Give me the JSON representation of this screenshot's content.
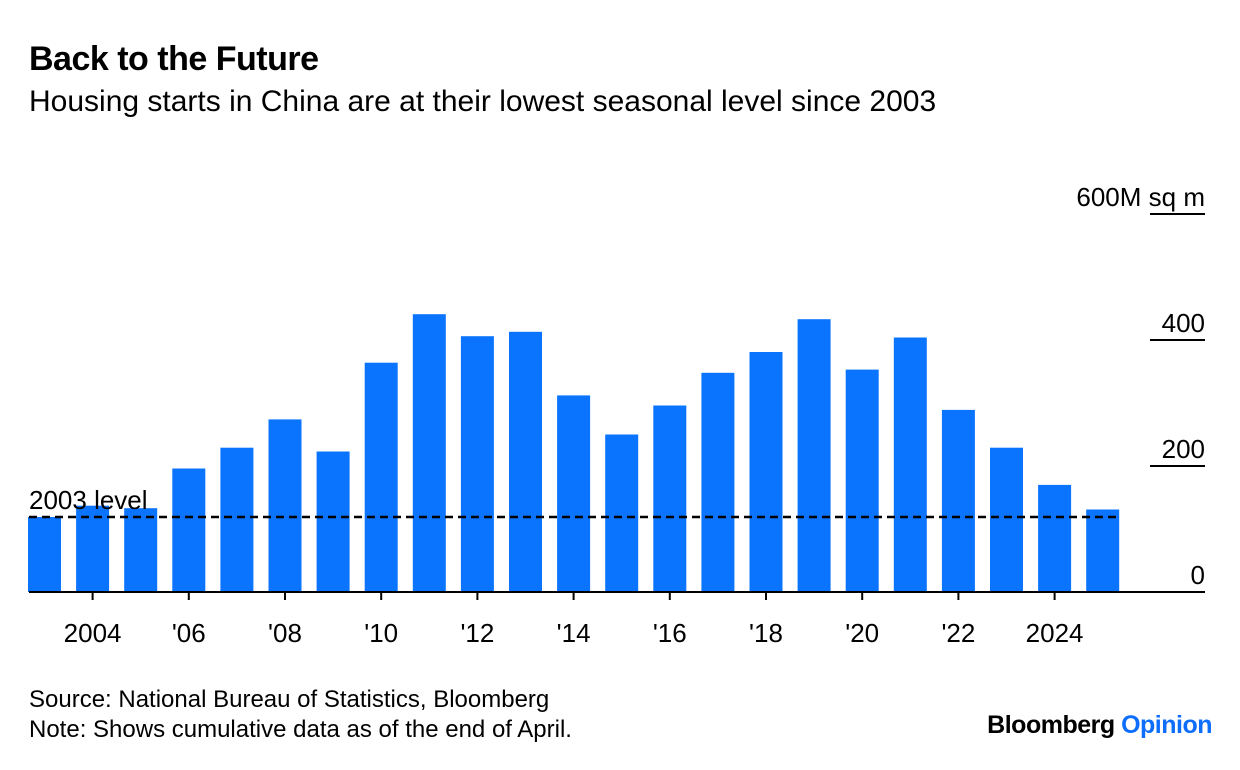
{
  "title": "Back to the Future",
  "subtitle": "Housing starts in China are at their lowest seasonal level since 2003",
  "footer": {
    "source": "Source: National Bureau of Statistics, Bloomberg",
    "note": "Note: Shows cumulative data as of the end of April."
  },
  "logo": {
    "brand": "Bloomberg",
    "section": "Opinion"
  },
  "colors": {
    "bar": "#0a74ff",
    "logo_accent": "#0d6efd",
    "axis": "#000000"
  },
  "chart_data": {
    "type": "bar",
    "title": "Back to the Future",
    "subtitle": "Housing starts in China are at their lowest seasonal level since 2003",
    "x": [
      2003,
      2004,
      2005,
      2006,
      2007,
      2008,
      2009,
      2010,
      2011,
      2012,
      2013,
      2014,
      2015,
      2016,
      2017,
      2018,
      2019,
      2020,
      2021,
      2022,
      2023,
      2024,
      2025
    ],
    "values": [
      119,
      137,
      133,
      196,
      229,
      274,
      223,
      364,
      441,
      406,
      413,
      312,
      250,
      296,
      348,
      381,
      433,
      353,
      404,
      289,
      229,
      170,
      131
    ],
    "ylim": [
      0,
      600
    ],
    "y_ticks": [
      0,
      200,
      400,
      600
    ],
    "y_tick_labels": [
      "0",
      "200",
      "400",
      "600M sq m"
    ],
    "x_ticks": [
      2004,
      2006,
      2008,
      2010,
      2012,
      2014,
      2016,
      2018,
      2020,
      2022,
      2024
    ],
    "x_tick_labels": [
      "2004",
      "'06",
      "'08",
      "'10",
      "'12",
      "'14",
      "'16",
      "'18",
      "'20",
      "'22",
      "2024"
    ],
    "reference_line": {
      "value": 119,
      "label": "2003 level",
      "style": "dashed"
    },
    "y_axis_position": "right",
    "grid": false
  }
}
